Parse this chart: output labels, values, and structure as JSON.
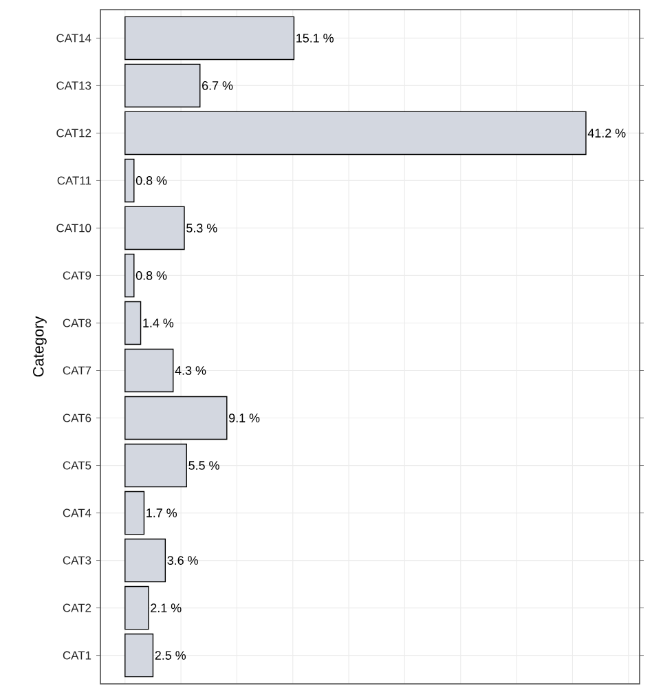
{
  "chart_data": {
    "type": "bar",
    "orientation": "horizontal",
    "ylabel": "Category",
    "categories": [
      "CAT14",
      "CAT13",
      "CAT12",
      "CAT11",
      "CAT10",
      "CAT9",
      "CAT8",
      "CAT7",
      "CAT6",
      "CAT5",
      "CAT4",
      "CAT3",
      "CAT2",
      "CAT1"
    ],
    "values": [
      15.1,
      6.7,
      41.2,
      0.8,
      5.3,
      0.8,
      1.4,
      4.3,
      9.1,
      5.5,
      1.7,
      3.6,
      2.1,
      2.5
    ],
    "value_labels": [
      "15.1 %",
      "6.7 %",
      "41.2 %",
      "0.8 %",
      "5.3 %",
      "0.8 %",
      "1.4 %",
      "4.3 %",
      "9.1 %",
      "5.5 %",
      "1.7 %",
      "3.6 %",
      "2.1 %",
      "2.5 %"
    ],
    "color": "#d3d7e0",
    "xlim": [
      -2.2,
      46
    ],
    "xticks": [
      {
        "value": 0,
        "label": null
      },
      {
        "value": 5,
        "label": null
      },
      {
        "value": 10,
        "label": null
      },
      {
        "value": 15,
        "label": null
      },
      {
        "value": 20,
        "label": null
      },
      {
        "value": 25,
        "label": null
      },
      {
        "value": 30,
        "label": null
      },
      {
        "value": 35,
        "label": null
      },
      {
        "value": 40,
        "label": null
      },
      {
        "value": 45,
        "label": null
      }
    ],
    "tick_labels": "y",
    "grid": true
  }
}
